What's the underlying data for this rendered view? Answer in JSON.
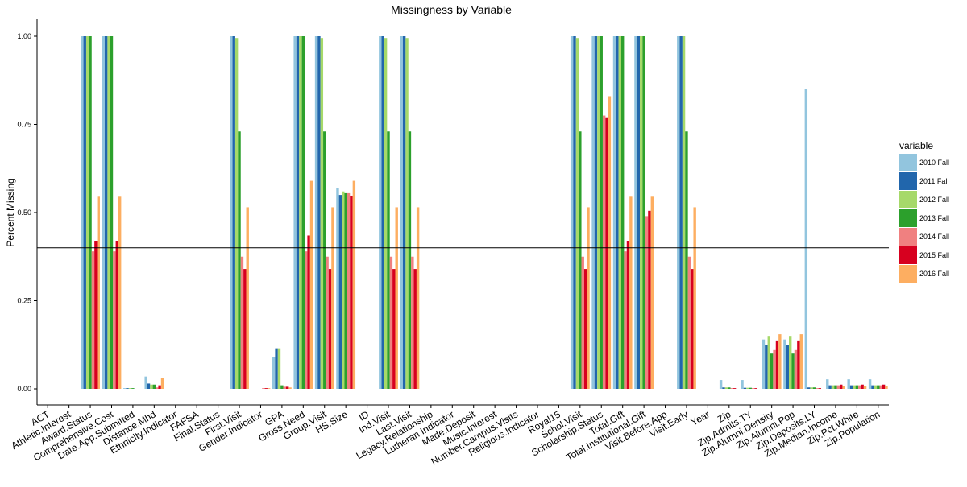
{
  "chart_data": {
    "type": "bar",
    "title": "Missingness by Variable",
    "xlabel": "",
    "ylabel": "Percent Missing",
    "ylim": [
      0,
      1.05
    ],
    "yticks": [
      0,
      0.25,
      0.5,
      0.75,
      1.0
    ],
    "ytick_labels": [
      "0.00",
      "0.25",
      "0.50",
      "0.75",
      "1.00"
    ],
    "reference_line": 0.4,
    "grid": false,
    "legend_position": "right",
    "legend_title": "variable",
    "categories": [
      "ACT",
      "Athletic.Interest",
      "Award.Status",
      "Comprehensive.Cost",
      "Date.App.Submitted",
      "Distance.Mhd",
      "Ethnicity.Indicator",
      "FAFSA",
      "Final.Status",
      "First.Visit",
      "Gender.Indicator",
      "GPA",
      "Gross.Need",
      "Group.Visit",
      "HS.Size",
      "ID",
      "Ind.Visit",
      "Last.Visit",
      "Legacy.Relationship",
      "Lutheran.Indicator",
      "Made.Deposit",
      "Music.Interest",
      "Number.Campus.Visits",
      "Religious.Indicator",
      "Royal15",
      "Schol.Visit",
      "Scholarship.Status",
      "Total.Gift",
      "Total.Institutional.Gift",
      "Visit.Before.App",
      "Visit.Early",
      "Year",
      "Zip",
      "Zip.Admits.TY",
      "Zip.Alumni.Density",
      "Zip.Alumni.Pop",
      "Zip.Deposits.LY",
      "Zip.Median.Income",
      "Zip.Pct.White",
      "Zip.Population"
    ],
    "series": [
      {
        "name": "2010 Fall",
        "color": "#92c5de",
        "values": [
          0,
          0,
          1.0,
          1.0,
          0.002,
          0.035,
          0,
          0,
          0,
          1.0,
          0,
          0.09,
          1.0,
          1.0,
          0.57,
          0,
          1.0,
          1.0,
          0,
          0,
          0,
          0,
          0,
          0,
          0,
          1.0,
          1.0,
          1.0,
          1.0,
          0,
          1.0,
          0,
          0.025,
          0.025,
          0.14,
          0.14,
          0.85,
          0.027,
          0.027,
          0.027
        ]
      },
      {
        "name": "2011 Fall",
        "color": "#2166ac",
        "values": [
          0,
          0,
          1.0,
          1.0,
          0.002,
          0.015,
          0,
          0,
          0,
          1.0,
          0,
          0.115,
          1.0,
          1.0,
          0.55,
          0,
          1.0,
          1.0,
          0,
          0,
          0,
          0,
          0,
          0,
          0,
          1.0,
          1.0,
          1.0,
          1.0,
          0,
          1.0,
          0,
          0.004,
          0.003,
          0.125,
          0.125,
          0.004,
          0.01,
          0.01,
          0.01
        ]
      },
      {
        "name": "2012 Fall",
        "color": "#a6d96a",
        "values": [
          0,
          0,
          1.0,
          1.0,
          0.002,
          0.012,
          0,
          0,
          0,
          0.995,
          0,
          0.115,
          1.0,
          0.995,
          0.56,
          0,
          0.995,
          0.995,
          0,
          0,
          0,
          0,
          0,
          0,
          0,
          0.995,
          1.0,
          1.0,
          1.0,
          0,
          1.0,
          0,
          0.004,
          0.003,
          0.148,
          0.148,
          0.004,
          0.01,
          0.01,
          0.01
        ]
      },
      {
        "name": "2013 Fall",
        "color": "#2ca02c",
        "values": [
          0,
          0,
          1.0,
          1.0,
          0.002,
          0.012,
          0,
          0,
          0,
          0.73,
          0,
          0.01,
          1.0,
          0.73,
          0.555,
          0,
          0.73,
          0.73,
          0,
          0,
          0,
          0,
          0,
          0,
          0,
          0.73,
          1.0,
          1.0,
          1.0,
          0,
          0.73,
          0,
          0.004,
          0.003,
          0.1,
          0.1,
          0.004,
          0.01,
          0.01,
          0.01
        ]
      },
      {
        "name": "2014 Fall",
        "color": "#f08080",
        "values": [
          0,
          0,
          0.39,
          0.39,
          0,
          0.004,
          0,
          0,
          0,
          0.375,
          0.002,
          0.006,
          0.39,
          0.375,
          0.555,
          0,
          0.375,
          0.375,
          0,
          0,
          0,
          0,
          0,
          0,
          0,
          0.375,
          0.775,
          0.39,
          0.49,
          0,
          0.375,
          0,
          0.002,
          0.002,
          0.11,
          0.11,
          0.002,
          0.01,
          0.01,
          0.01
        ]
      },
      {
        "name": "2015 Fall",
        "color": "#d7001f",
        "values": [
          0,
          0,
          0.42,
          0.42,
          0,
          0.01,
          0,
          0,
          0,
          0.34,
          0.002,
          0.006,
          0.435,
          0.34,
          0.548,
          0,
          0.34,
          0.34,
          0,
          0,
          0,
          0,
          0,
          0,
          0,
          0.34,
          0.77,
          0.42,
          0.505,
          0,
          0.34,
          0,
          0.002,
          0.002,
          0.135,
          0.135,
          0.002,
          0.012,
          0.012,
          0.012
        ]
      },
      {
        "name": "2016 Fall",
        "color": "#fdae61",
        "values": [
          0,
          0,
          0.545,
          0.545,
          0,
          0.03,
          0,
          0,
          0,
          0.515,
          0.002,
          0.004,
          0.59,
          0.515,
          0.59,
          0,
          0.515,
          0.515,
          0,
          0,
          0,
          0,
          0,
          0,
          0,
          0.515,
          0.83,
          0.545,
          0.545,
          0,
          0.515,
          0,
          0,
          0,
          0.155,
          0.155,
          0,
          0.008,
          0.008,
          0.008
        ]
      }
    ]
  }
}
